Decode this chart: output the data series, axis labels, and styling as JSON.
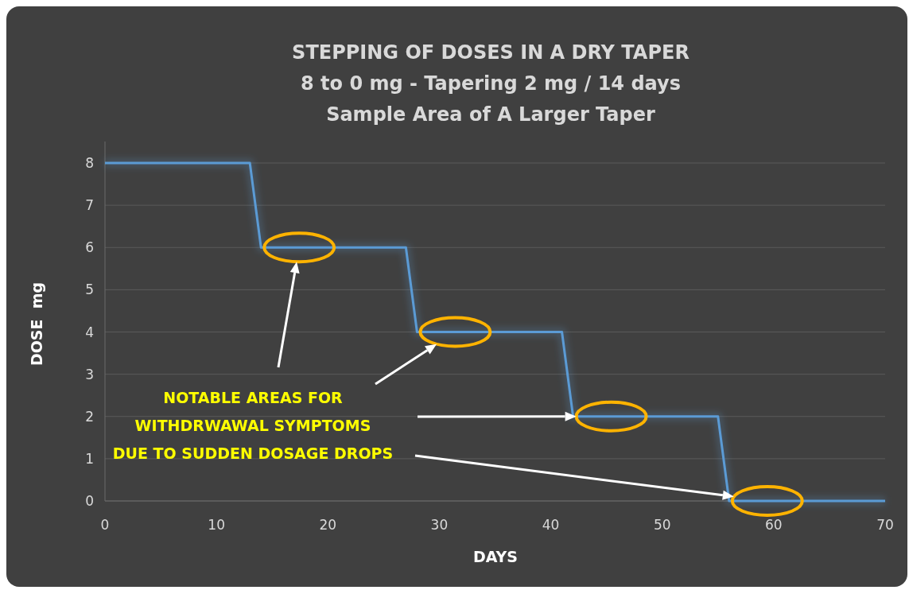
{
  "chart_data": {
    "type": "line",
    "title": "STEPPING OF DOSES IN A DRY TAPER\n8 to 0 mg - Tapering 2 mg / 14 days\nSample Area of A Larger Taper",
    "xlabel": "DAYS",
    "ylabel": "DOSE  mg",
    "series": [
      {
        "color": "#5b9bd5",
        "x": [
          0,
          13,
          14,
          27,
          28,
          41,
          42,
          55,
          56,
          70
        ],
        "values": [
          8,
          8,
          6,
          6,
          4,
          4,
          2,
          2,
          0,
          0
        ]
      }
    ],
    "xlim": [
      0,
      70
    ],
    "xticks": [
      0,
      10,
      20,
      30,
      40,
      50,
      60,
      70
    ],
    "ylim": [
      0,
      8
    ],
    "yticks": [
      0,
      1,
      2,
      3,
      4,
      5,
      6,
      7,
      8
    ],
    "grid": "y",
    "marker": "none",
    "line_style": "solid",
    "annotations": [
      "NOTABLE AREAS FOR\nWITHDRWAWAL SYMPTOMS\nDUE TO SUDDEN DOSAGE DROPS"
    ]
  }
}
